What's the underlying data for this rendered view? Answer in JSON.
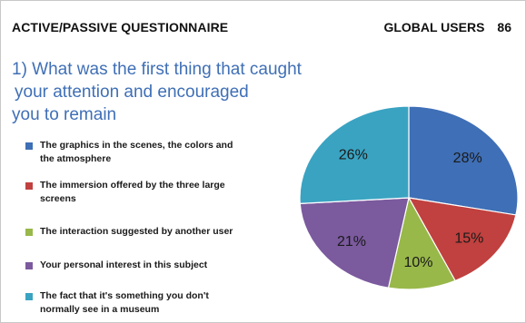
{
  "header": {
    "title": "ACTIVE/PASSIVE QUESTIONNAIRE",
    "users_label": "GLOBAL USERS",
    "users_count": "86"
  },
  "question": {
    "line1": "1) What was the first thing that caught",
    "line2": "your attention and encouraged",
    "line3": "you to remain"
  },
  "chart_data": {
    "type": "pie",
    "title": "",
    "legend_position": "left",
    "slices": [
      {
        "label": "The graphics in the scenes, the colors and the atmosphere",
        "label_lines": [
          "The graphics in the scenes, the colors and",
          "the atmosphere"
        ],
        "value": 28,
        "display": "28%",
        "color": "#3f6fb6"
      },
      {
        "label": "The immersion offered by the three large screens",
        "label_lines": [
          "The immersion offered by the three large",
          "screens"
        ],
        "value": 15,
        "display": "15%",
        "color": "#c0413f"
      },
      {
        "label": "The interaction suggested by another user",
        "label_lines": [
          "The interaction suggested by another user"
        ],
        "value": 10,
        "display": "10%",
        "color": "#98b84a"
      },
      {
        "label": "Your personal interest in this subject",
        "label_lines": [
          "Your personal interest in this subject"
        ],
        "value": 21,
        "display": "21%",
        "color": "#7b5a9e"
      },
      {
        "label": "The fact that it's something you don't normally see in a museum",
        "label_lines": [
          "The fact that it's something you don't",
          "normally see in a museum"
        ],
        "value": 26,
        "display": "26%",
        "color": "#3aa3c2"
      }
    ]
  }
}
